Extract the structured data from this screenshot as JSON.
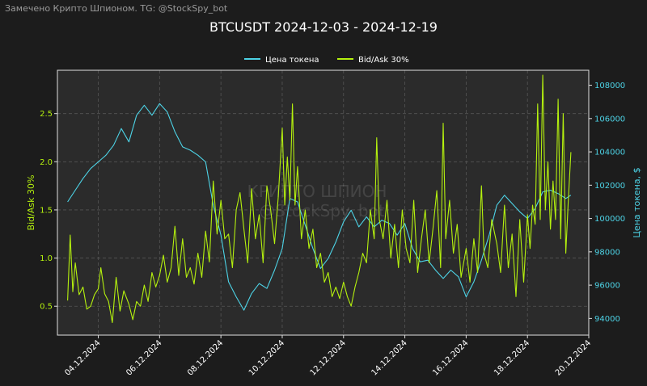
{
  "header": {
    "watermark": "Замечено Крипто Шпионом. TG: @StockSpy_bot",
    "title": "BTCUSDT 2024-12-03 - 2024-12-19"
  },
  "watermark_center": {
    "line1": "КРИПТО ШПИОН",
    "line2": "@StockSpy_bot"
  },
  "colors": {
    "background": "#1c1c1c",
    "plot_bg": "#2b2b2b",
    "price": "#4dd3e6",
    "bidask": "#b5f10e",
    "grid": "#555555"
  },
  "chart_data": {
    "type": "line",
    "title": "BTCUSDT 2024-12-03 - 2024-12-19",
    "legend_placement": "top-center",
    "grid": true,
    "xlabel": "",
    "x_range": [
      "2024-12-02T16:00",
      "2024-12-20T00:00"
    ],
    "x_ticks": [
      "04.12.2024",
      "06.12.2024",
      "08.12.2024",
      "10.12.2024",
      "12.12.2024",
      "14.12.2024",
      "16.12.2024",
      "18.12.2024",
      "20.12.2024"
    ],
    "y_left": {
      "label": "Bid/Ask 30%",
      "range": [
        0.2,
        2.95
      ],
      "ticks": [
        "0.5",
        "1.0",
        "1.5",
        "2.0",
        "2.5"
      ]
    },
    "y_right": {
      "label": "Цена токена, $",
      "range": [
        93000,
        108900
      ],
      "ticks": [
        "94000",
        "96000",
        "98000",
        "100000",
        "102000",
        "104000",
        "106000",
        "108000"
      ]
    },
    "series": [
      {
        "name": "Цена токена",
        "axis": "right",
        "points": [
          [
            "2024-12-03T00:00",
            101000
          ],
          [
            "2024-12-03T06:00",
            101700
          ],
          [
            "2024-12-03T12:00",
            102400
          ],
          [
            "2024-12-03T18:00",
            103000
          ],
          [
            "2024-12-04T00:00",
            103400
          ],
          [
            "2024-12-04T06:00",
            103800
          ],
          [
            "2024-12-04T12:00",
            104400
          ],
          [
            "2024-12-04T18:00",
            105400
          ],
          [
            "2024-12-05T00:00",
            104600
          ],
          [
            "2024-12-05T06:00",
            106200
          ],
          [
            "2024-12-05T12:00",
            106800
          ],
          [
            "2024-12-05T18:00",
            106200
          ],
          [
            "2024-12-06T00:00",
            106900
          ],
          [
            "2024-12-06T06:00",
            106400
          ],
          [
            "2024-12-06T12:00",
            105200
          ],
          [
            "2024-12-06T18:00",
            104300
          ],
          [
            "2024-12-07T00:00",
            104100
          ],
          [
            "2024-12-07T06:00",
            103800
          ],
          [
            "2024-12-07T12:00",
            103400
          ],
          [
            "2024-12-07T18:00",
            100800
          ],
          [
            "2024-12-08T00:00",
            99000
          ],
          [
            "2024-12-08T06:00",
            96200
          ],
          [
            "2024-12-08T12:00",
            95300
          ],
          [
            "2024-12-08T18:00",
            94500
          ],
          [
            "2024-12-09T00:00",
            95500
          ],
          [
            "2024-12-09T06:00",
            96100
          ],
          [
            "2024-12-09T12:00",
            95800
          ],
          [
            "2024-12-09T18:00",
            96900
          ],
          [
            "2024-12-10T00:00",
            98200
          ],
          [
            "2024-12-10T06:00",
            101200
          ],
          [
            "2024-12-10T12:00",
            101000
          ],
          [
            "2024-12-10T18:00",
            99600
          ],
          [
            "2024-12-11T00:00",
            98200
          ],
          [
            "2024-12-11T06:00",
            97000
          ],
          [
            "2024-12-11T12:00",
            97600
          ],
          [
            "2024-12-11T18:00",
            98600
          ],
          [
            "2024-12-12T00:00",
            99800
          ],
          [
            "2024-12-12T06:00",
            100500
          ],
          [
            "2024-12-12T12:00",
            99500
          ],
          [
            "2024-12-12T18:00",
            100100
          ],
          [
            "2024-12-13T00:00",
            99500
          ],
          [
            "2024-12-13T06:00",
            99900
          ],
          [
            "2024-12-13T12:00",
            99700
          ],
          [
            "2024-12-13T18:00",
            99000
          ],
          [
            "2024-12-14T00:00",
            99700
          ],
          [
            "2024-12-14T06:00",
            98200
          ],
          [
            "2024-12-14T12:00",
            97400
          ],
          [
            "2024-12-14T18:00",
            97500
          ],
          [
            "2024-12-15T00:00",
            96900
          ],
          [
            "2024-12-15T06:00",
            96400
          ],
          [
            "2024-12-15T12:00",
            96900
          ],
          [
            "2024-12-15T18:00",
            96500
          ],
          [
            "2024-12-16T00:00",
            95300
          ],
          [
            "2024-12-16T06:00",
            96200
          ],
          [
            "2024-12-16T12:00",
            97500
          ],
          [
            "2024-12-16T18:00",
            99000
          ],
          [
            "2024-12-17T00:00",
            100800
          ],
          [
            "2024-12-17T06:00",
            101400
          ],
          [
            "2024-12-17T12:00",
            100900
          ],
          [
            "2024-12-17T18:00",
            100400
          ],
          [
            "2024-12-18T00:00",
            100000
          ],
          [
            "2024-12-18T06:00",
            100600
          ],
          [
            "2024-12-18T12:00",
            101600
          ],
          [
            "2024-12-18T18:00",
            101700
          ],
          [
            "2024-12-19T00:00",
            101500
          ],
          [
            "2024-12-19T06:00",
            101200
          ],
          [
            "2024-12-19T10:00",
            101400
          ]
        ]
      },
      {
        "name": "Bid/Ask 30%",
        "axis": "left",
        "points": [
          [
            "2024-12-03T00:00",
            0.56
          ],
          [
            "2024-12-03T02:00",
            1.24
          ],
          [
            "2024-12-03T04:00",
            0.65
          ],
          [
            "2024-12-03T06:00",
            0.95
          ],
          [
            "2024-12-03T09:00",
            0.62
          ],
          [
            "2024-12-03T12:00",
            0.7
          ],
          [
            "2024-12-03T15:00",
            0.47
          ],
          [
            "2024-12-03T18:00",
            0.5
          ],
          [
            "2024-12-03T21:00",
            0.62
          ],
          [
            "2024-12-04T00:00",
            0.68
          ],
          [
            "2024-12-04T02:00",
            0.9
          ],
          [
            "2024-12-04T05:00",
            0.63
          ],
          [
            "2024-12-04T08:00",
            0.55
          ],
          [
            "2024-12-04T11:00",
            0.33
          ],
          [
            "2024-12-04T14:00",
            0.8
          ],
          [
            "2024-12-04T17:00",
            0.45
          ],
          [
            "2024-12-04T20:00",
            0.66
          ],
          [
            "2024-12-05T00:00",
            0.52
          ],
          [
            "2024-12-05T03:00",
            0.36
          ],
          [
            "2024-12-05T06:00",
            0.55
          ],
          [
            "2024-12-05T09:00",
            0.5
          ],
          [
            "2024-12-05T12:00",
            0.72
          ],
          [
            "2024-12-05T15:00",
            0.55
          ],
          [
            "2024-12-05T18:00",
            0.85
          ],
          [
            "2024-12-05T21:00",
            0.7
          ],
          [
            "2024-12-06T00:00",
            0.82
          ],
          [
            "2024-12-06T03:00",
            1.03
          ],
          [
            "2024-12-06T06:00",
            0.75
          ],
          [
            "2024-12-06T09:00",
            0.9
          ],
          [
            "2024-12-06T12:00",
            1.33
          ],
          [
            "2024-12-06T15:00",
            0.82
          ],
          [
            "2024-12-06T18:00",
            1.2
          ],
          [
            "2024-12-06T21:00",
            0.8
          ],
          [
            "2024-12-07T00:00",
            0.9
          ],
          [
            "2024-12-07T03:00",
            0.73
          ],
          [
            "2024-12-07T06:00",
            1.05
          ],
          [
            "2024-12-07T09:00",
            0.8
          ],
          [
            "2024-12-07T12:00",
            1.28
          ],
          [
            "2024-12-07T15:00",
            0.96
          ],
          [
            "2024-12-07T18:00",
            1.8
          ],
          [
            "2024-12-07T21:00",
            1.25
          ],
          [
            "2024-12-08T00:00",
            1.6
          ],
          [
            "2024-12-08T03:00",
            1.2
          ],
          [
            "2024-12-08T06:00",
            1.25
          ],
          [
            "2024-12-08T09:00",
            0.9
          ],
          [
            "2024-12-08T12:00",
            1.5
          ],
          [
            "2024-12-08T15:00",
            1.68
          ],
          [
            "2024-12-08T18:00",
            1.3
          ],
          [
            "2024-12-08T21:00",
            0.95
          ],
          [
            "2024-12-09T00:00",
            1.72
          ],
          [
            "2024-12-09T03:00",
            1.2
          ],
          [
            "2024-12-09T06:00",
            1.45
          ],
          [
            "2024-12-09T09:00",
            0.95
          ],
          [
            "2024-12-09T12:00",
            1.75
          ],
          [
            "2024-12-09T15:00",
            1.5
          ],
          [
            "2024-12-09T18:00",
            1.15
          ],
          [
            "2024-12-09T21:00",
            1.65
          ],
          [
            "2024-12-10T00:00",
            2.35
          ],
          [
            "2024-12-10T02:00",
            1.55
          ],
          [
            "2024-12-10T04:00",
            2.05
          ],
          [
            "2024-12-10T06:00",
            1.6
          ],
          [
            "2024-12-10T08:00",
            2.6
          ],
          [
            "2024-12-10T10:00",
            1.55
          ],
          [
            "2024-12-10T12:00",
            1.95
          ],
          [
            "2024-12-10T15:00",
            1.2
          ],
          [
            "2024-12-10T18:00",
            1.5
          ],
          [
            "2024-12-10T21:00",
            1.1
          ],
          [
            "2024-12-11T00:00",
            1.3
          ],
          [
            "2024-12-11T03:00",
            0.9
          ],
          [
            "2024-12-11T06:00",
            1.05
          ],
          [
            "2024-12-11T09:00",
            0.75
          ],
          [
            "2024-12-11T12:00",
            0.85
          ],
          [
            "2024-12-11T15:00",
            0.6
          ],
          [
            "2024-12-11T18:00",
            0.7
          ],
          [
            "2024-12-11T21:00",
            0.58
          ],
          [
            "2024-12-12T00:00",
            0.75
          ],
          [
            "2024-12-12T03:00",
            0.6
          ],
          [
            "2024-12-12T06:00",
            0.5
          ],
          [
            "2024-12-12T09:00",
            0.7
          ],
          [
            "2024-12-12T12:00",
            0.85
          ],
          [
            "2024-12-12T15:00",
            1.05
          ],
          [
            "2024-12-12T18:00",
            0.95
          ],
          [
            "2024-12-12T21:00",
            1.5
          ],
          [
            "2024-12-13T00:00",
            1.2
          ],
          [
            "2024-12-13T02:00",
            2.25
          ],
          [
            "2024-12-13T04:00",
            1.4
          ],
          [
            "2024-12-13T07:00",
            1.2
          ],
          [
            "2024-12-13T10:00",
            1.6
          ],
          [
            "2024-12-13T13:00",
            1.0
          ],
          [
            "2024-12-13T16:00",
            1.35
          ],
          [
            "2024-12-13T19:00",
            0.9
          ],
          [
            "2024-12-13T22:00",
            1.5
          ],
          [
            "2024-12-14T01:00",
            1.1
          ],
          [
            "2024-12-14T04:00",
            0.95
          ],
          [
            "2024-12-14T07:00",
            1.6
          ],
          [
            "2024-12-14T10:00",
            0.85
          ],
          [
            "2024-12-14T13:00",
            1.2
          ],
          [
            "2024-12-14T16:00",
            1.5
          ],
          [
            "2024-12-14T19:00",
            0.95
          ],
          [
            "2024-12-14T22:00",
            1.3
          ],
          [
            "2024-12-15T01:00",
            1.7
          ],
          [
            "2024-12-15T04:00",
            0.9
          ],
          [
            "2024-12-15T06:00",
            2.4
          ],
          [
            "2024-12-15T08:00",
            1.2
          ],
          [
            "2024-12-15T11:00",
            1.6
          ],
          [
            "2024-12-15T14:00",
            1.05
          ],
          [
            "2024-12-15T17:00",
            1.35
          ],
          [
            "2024-12-15T20:00",
            0.8
          ],
          [
            "2024-12-16T00:00",
            1.1
          ],
          [
            "2024-12-16T03:00",
            0.75
          ],
          [
            "2024-12-16T06:00",
            1.2
          ],
          [
            "2024-12-16T09:00",
            0.85
          ],
          [
            "2024-12-16T12:00",
            1.75
          ],
          [
            "2024-12-16T14:00",
            1.05
          ],
          [
            "2024-12-16T17:00",
            0.9
          ],
          [
            "2024-12-16T20:00",
            1.4
          ],
          [
            "2024-12-17T00:00",
            1.15
          ],
          [
            "2024-12-17T03:00",
            0.85
          ],
          [
            "2024-12-17T06:00",
            1.55
          ],
          [
            "2024-12-17T09:00",
            0.9
          ],
          [
            "2024-12-17T12:00",
            1.25
          ],
          [
            "2024-12-17T15:00",
            0.6
          ],
          [
            "2024-12-17T18:00",
            1.4
          ],
          [
            "2024-12-17T21:00",
            0.75
          ],
          [
            "2024-12-18T00:00",
            1.45
          ],
          [
            "2024-12-18T02:00",
            1.1
          ],
          [
            "2024-12-18T04:00",
            1.55
          ],
          [
            "2024-12-18T06:00",
            1.35
          ],
          [
            "2024-12-18T08:00",
            2.6
          ],
          [
            "2024-12-18T10:00",
            1.4
          ],
          [
            "2024-12-18T12:00",
            2.9
          ],
          [
            "2024-12-18T14:00",
            1.5
          ],
          [
            "2024-12-18T16:00",
            2.0
          ],
          [
            "2024-12-18T18:00",
            1.3
          ],
          [
            "2024-12-18T20:00",
            1.8
          ],
          [
            "2024-12-18T22:00",
            1.4
          ],
          [
            "2024-12-19T00:00",
            2.65
          ],
          [
            "2024-12-19T02:00",
            1.2
          ],
          [
            "2024-12-19T04:00",
            2.5
          ],
          [
            "2024-12-19T06:00",
            1.05
          ],
          [
            "2024-12-19T08:00",
            1.6
          ],
          [
            "2024-12-19T10:00",
            2.1
          ]
        ]
      }
    ]
  }
}
